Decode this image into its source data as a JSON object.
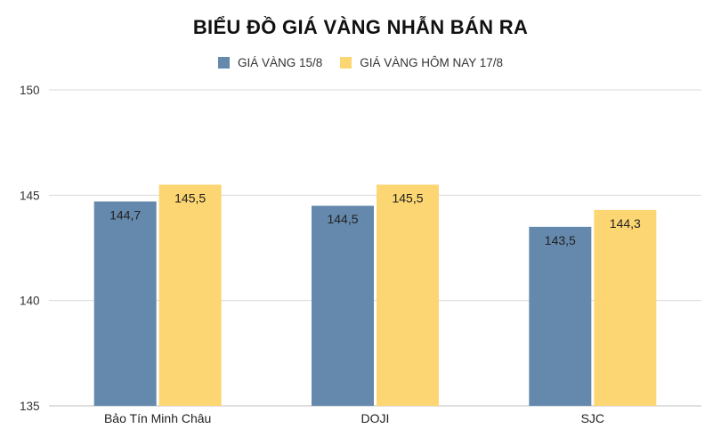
{
  "chart_data": {
    "type": "bar",
    "title": "BIỂU ĐỒ GIÁ VÀNG NHẪN BÁN RA",
    "categories": [
      "Bảo Tín Minh Châu",
      "DOJI",
      "SJC"
    ],
    "series": [
      {
        "name": "GIÁ VÀNG 15/8",
        "values": [
          144.7,
          144.5,
          143.5
        ],
        "labels": [
          "144,7",
          "144,5",
          "143,5"
        ],
        "color": "#6489ad"
      },
      {
        "name": "GIÁ VÀNG HÔM NAY 17/8",
        "values": [
          145.5,
          145.5,
          144.3
        ],
        "labels": [
          "145,5",
          "145,5",
          "144,3"
        ],
        "color": "#fcd672"
      }
    ],
    "ylim": [
      135,
      150
    ],
    "yticks": [
      135,
      140,
      145,
      150
    ],
    "grid": true,
    "legend_position": "top"
  }
}
